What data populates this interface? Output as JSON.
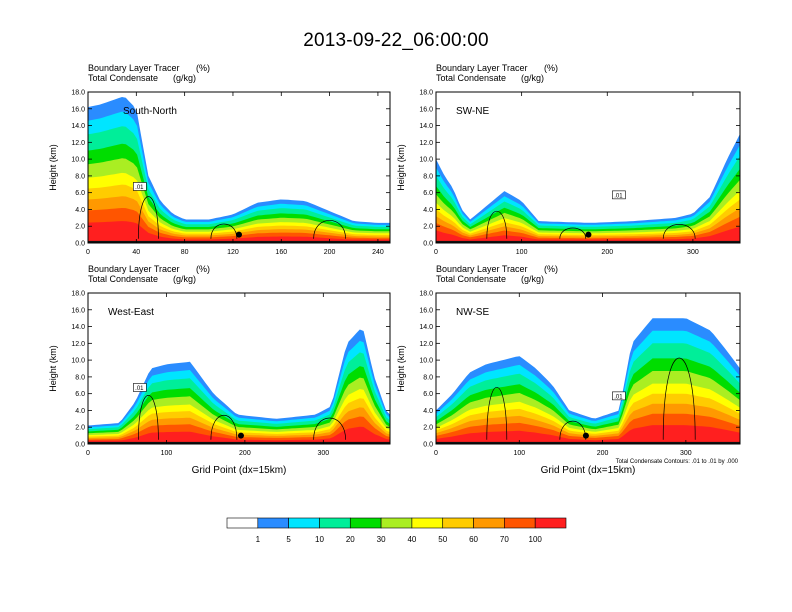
{
  "title": "2013-09-22_06:00:00",
  "panel_header": {
    "line1_label": "Boundary Layer Tracer",
    "line1_unit": "(%)",
    "line2_label": "Total Condensate",
    "line2_unit": "(g/kg)"
  },
  "ylabel": "Height (km)",
  "xlabel": "Grid Point (dx=15km)",
  "contour_note": "Total Condensate Contours: .01 to .01 by .000",
  "contour_label": ".01",
  "colorbar": {
    "colors": [
      "#ffffff",
      "#2a8cff",
      "#00e5ff",
      "#00ee99",
      "#00dd00",
      "#aaee22",
      "#ffff00",
      "#ffcc00",
      "#ff9900",
      "#ff5500",
      "#ff1f1f"
    ],
    "labels": [
      "1",
      "5",
      "10",
      "20",
      "30",
      "40",
      "50",
      "60",
      "70",
      "100"
    ]
  },
  "chart_data": [
    {
      "type": "heatmap",
      "panel_label": "South-North",
      "xlim": [
        0,
        250
      ],
      "ylim": [
        0,
        18
      ],
      "xticks": [
        "0",
        "40",
        "80",
        "120",
        "160",
        "200",
        "240"
      ],
      "yticks": [
        "0.0",
        "2.0",
        "4.0",
        "6.0",
        "8.0",
        "10.0",
        "12.0",
        "14.0",
        "16.0",
        "18.0"
      ],
      "marker": {
        "x": 125,
        "y": 1.0
      },
      "tracer_top_km": [
        [
          0,
          16.2
        ],
        [
          10,
          16.5
        ],
        [
          20,
          17
        ],
        [
          30,
          17.5
        ],
        [
          40,
          16
        ],
        [
          50,
          8
        ],
        [
          60,
          5
        ],
        [
          70,
          3.5
        ],
        [
          80,
          2.8
        ],
        [
          100,
          2.8
        ],
        [
          120,
          3.4
        ],
        [
          140,
          4.8
        ],
        [
          160,
          5.2
        ],
        [
          180,
          5.0
        ],
        [
          200,
          3.8
        ],
        [
          220,
          2.6
        ],
        [
          240,
          2.4
        ],
        [
          250,
          2.4
        ]
      ]
    },
    {
      "type": "heatmap",
      "panel_label": "SW-NE",
      "xlim": [
        0,
        355
      ],
      "ylim": [
        0,
        18
      ],
      "xticks": [
        "0",
        "100",
        "200",
        "300"
      ],
      "yticks": [
        "0.0",
        "2.0",
        "4.0",
        "6.0",
        "8.0",
        "10.0",
        "12.0",
        "14.0",
        "16.0",
        "18.0"
      ],
      "marker": {
        "x": 178,
        "y": 1.0
      },
      "tracer_top_km": [
        [
          0,
          10
        ],
        [
          10,
          8
        ],
        [
          20,
          6.5
        ],
        [
          30,
          4
        ],
        [
          40,
          2.8
        ],
        [
          60,
          4.5
        ],
        [
          80,
          6.2
        ],
        [
          100,
          5
        ],
        [
          120,
          2.6
        ],
        [
          180,
          2.4
        ],
        [
          230,
          2.6
        ],
        [
          280,
          3
        ],
        [
          300,
          3.5
        ],
        [
          320,
          5.5
        ],
        [
          340,
          10
        ],
        [
          355,
          13
        ]
      ]
    },
    {
      "type": "heatmap",
      "panel_label": "West-East",
      "xlim": [
        0,
        385
      ],
      "ylim": [
        0,
        18
      ],
      "xticks": [
        "0",
        "100",
        "200",
        "300"
      ],
      "yticks": [
        "0.0",
        "2.0",
        "4.0",
        "6.0",
        "8.0",
        "10.0",
        "12.0",
        "14.0",
        "16.0",
        "18.0"
      ],
      "marker": {
        "x": 195,
        "y": 1.0
      },
      "tracer_top_km": [
        [
          0,
          2.2
        ],
        [
          40,
          2.5
        ],
        [
          60,
          5
        ],
        [
          80,
          9
        ],
        [
          100,
          9.5
        ],
        [
          130,
          9.8
        ],
        [
          160,
          6
        ],
        [
          190,
          3.5
        ],
        [
          240,
          3
        ],
        [
          290,
          3.5
        ],
        [
          310,
          4.5
        ],
        [
          330,
          12
        ],
        [
          350,
          14
        ],
        [
          365,
          8
        ],
        [
          380,
          4
        ],
        [
          385,
          3.5
        ]
      ]
    },
    {
      "type": "heatmap",
      "panel_label": "NW-SE",
      "xlim": [
        0,
        365
      ],
      "ylim": [
        0,
        18
      ],
      "xticks": [
        "0",
        "100",
        "200",
        "300"
      ],
      "yticks": [
        "0.0",
        "2.0",
        "4.0",
        "6.0",
        "8.0",
        "10.0",
        "12.0",
        "14.0",
        "16.0",
        "18.0"
      ],
      "marker": {
        "x": 180,
        "y": 1.0
      },
      "tracer_top_km": [
        [
          0,
          4
        ],
        [
          20,
          6
        ],
        [
          40,
          8.5
        ],
        [
          60,
          9.5
        ],
        [
          80,
          10
        ],
        [
          100,
          10.5
        ],
        [
          120,
          9
        ],
        [
          140,
          7
        ],
        [
          160,
          4
        ],
        [
          190,
          3
        ],
        [
          220,
          4
        ],
        [
          235,
          12
        ],
        [
          260,
          15
        ],
        [
          300,
          15
        ],
        [
          330,
          13.5
        ],
        [
          350,
          11
        ],
        [
          365,
          9
        ]
      ]
    }
  ]
}
